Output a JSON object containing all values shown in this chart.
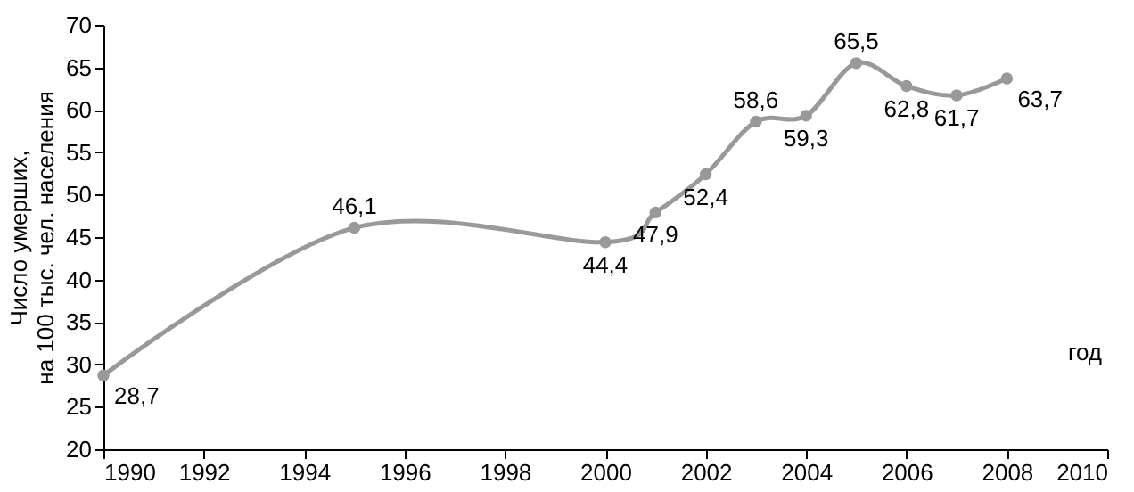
{
  "chart_data": {
    "type": "line",
    "xlabel": "год",
    "ylabel": "Число умерших,\nна 100 тыс. чел. населения",
    "x": [
      1990,
      1995,
      2000,
      2001,
      2002,
      2003,
      2004,
      2005,
      2006,
      2007,
      2008
    ],
    "series": [
      {
        "color": "#999999",
        "values": [
          28.7,
          46.1,
          44.4,
          47.9,
          52.4,
          58.6,
          59.3,
          65.5,
          62.8,
          61.7,
          63.7
        ],
        "value_labels": [
          "28,7",
          "46,1",
          "44,4",
          "47,9",
          "52,4",
          "58,6",
          "59,3",
          "65,5",
          "62,8",
          "61,7",
          "63,7"
        ]
      }
    ],
    "xlim": [
      1990,
      2010
    ],
    "xticks": [
      1990,
      1992,
      1994,
      1996,
      1998,
      2000,
      2002,
      2004,
      2006,
      2008,
      2010
    ],
    "ylim": [
      20,
      70
    ],
    "yticks": [
      20,
      25,
      30,
      35,
      40,
      45,
      50,
      55,
      60,
      65,
      70
    ],
    "marker": "circle",
    "line_style": "solid",
    "grid": false
  }
}
